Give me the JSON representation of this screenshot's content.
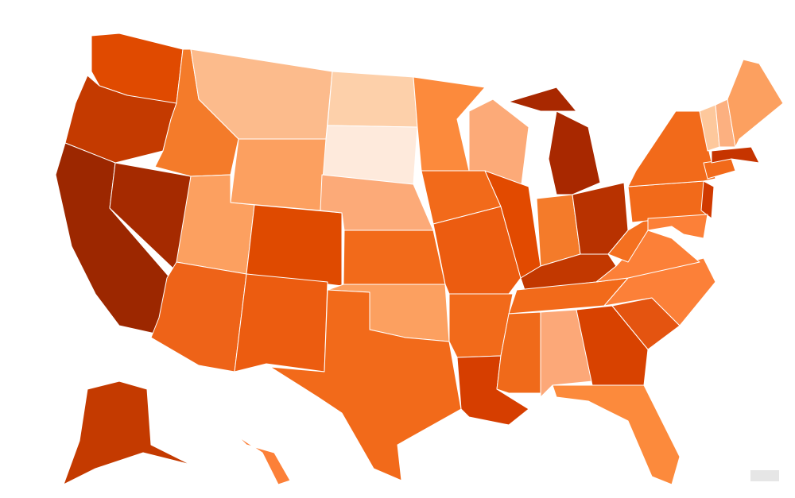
{
  "map": {
    "colors": [
      "#e04a00",
      "#c43a00",
      "#9c2700",
      "#a52a00",
      "#f47b2a",
      "#fcbb8c",
      "#fdd0aa",
      "#feeadc",
      "#fca060",
      "#fca060",
      "#df4a00",
      "#ee6318",
      "#ec5c10",
      "#fcaa78",
      "#f26a1a",
      "#fca060",
      "#f26a1a",
      "#fc8a3c",
      "#f26a1a",
      "#ec5c10",
      "#f26a1a",
      "#d63e00",
      "#fcaa78",
      "#e24a00",
      "#a82800",
      "#a82800",
      "#f47b2a",
      "#b83200",
      "#c23800",
      "#f26a1a",
      "#f06a1a",
      "#fca878",
      "#d84200",
      "#fc8a3c",
      "#e45410",
      "#fc8038",
      "#fc8038",
      "#f47020",
      "#f26a1a",
      "#f26a1a",
      "#d03a00",
      "#fc8038",
      "#f26a1a",
      "#c63400",
      "#fdc89c",
      "#fcb080",
      "#fca060",
      "#c43a00",
      "#fc8038"
    ]
  }
}
